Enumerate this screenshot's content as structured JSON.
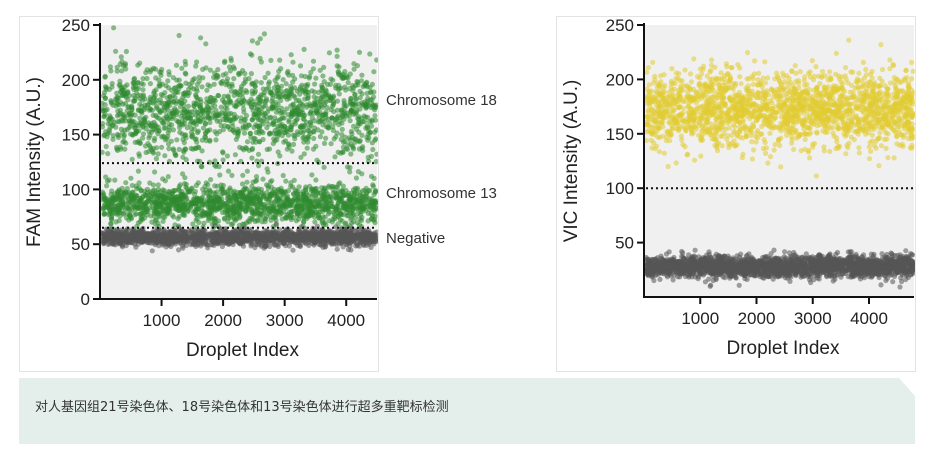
{
  "chart_data": [
    {
      "type": "scatter",
      "title": "",
      "xlabel": "Droplet Index",
      "ylabel": "FAM Intensity (A.U.)",
      "xlim": [
        0,
        4500
      ],
      "ylim": [
        0,
        250
      ],
      "x_ticks": [
        1000,
        2000,
        3000,
        4000
      ],
      "y_ticks": [
        0,
        50,
        100,
        150,
        200,
        250
      ],
      "threshold_lines": [
        124,
        65
      ],
      "grid": false,
      "series": [
        {
          "name": "Chromosome 18",
          "color": "#2f8a2f",
          "y_center": 172,
          "y_spread": 22,
          "count": 1500
        },
        {
          "name": "Chromosome 13",
          "color": "#2f8a2f",
          "y_center": 87,
          "y_spread": 9,
          "count": 1500
        },
        {
          "name": "Negative",
          "color": "#555555",
          "y_center": 56,
          "y_spread": 3.5,
          "count": 1800
        }
      ],
      "annotations": [
        "Chromosome 18",
        "Chromosome 13",
        "Negative"
      ]
    },
    {
      "type": "scatter",
      "title": "",
      "xlabel": "Droplet Index",
      "ylabel": "VIC Intensity (A.U.)",
      "xlim": [
        0,
        4800
      ],
      "ylim": [
        0,
        250
      ],
      "x_ticks": [
        1000,
        2000,
        3000,
        4000
      ],
      "y_ticks": [
        50,
        100,
        150,
        200,
        250
      ],
      "threshold_lines": [
        100
      ],
      "grid": false,
      "series": [
        {
          "name": "",
          "color": "#e2cc33",
          "y_center": 172,
          "y_spread": 17,
          "count": 2000
        },
        {
          "name": "",
          "color": "#555555",
          "y_center": 28,
          "y_spread": 5,
          "count": 2400
        }
      ]
    }
  ],
  "caption": "对人基因组21号染色体、18号染色体和13号染色体进行超多重靶标检测"
}
